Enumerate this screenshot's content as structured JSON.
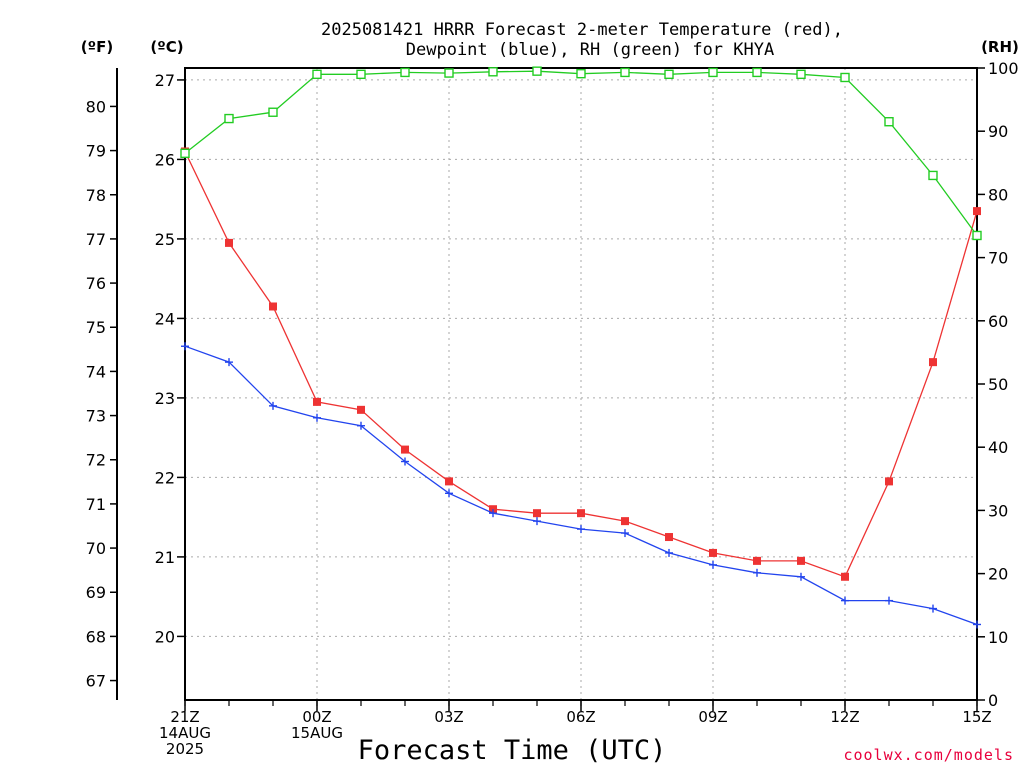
{
  "chart_data": {
    "type": "line",
    "title_line1": "2025081421 HRRR Forecast 2-meter Temperature (red),",
    "title_line2": "Dewpoint (blue), RH (green) for KHYA",
    "axis_unit_f": "(ºF)",
    "axis_unit_c": "(ºC)",
    "axis_unit_rh": "(RH)",
    "xlabel": "Forecast Time (UTC)",
    "credit": "coolwx.com/models",
    "x_hours": [
      0,
      1,
      2,
      3,
      4,
      5,
      6,
      7,
      8,
      9,
      10,
      11,
      12,
      13,
      14,
      15,
      16,
      17,
      18
    ],
    "xlim": [
      0,
      18
    ],
    "x_ticks": [
      {
        "hour": 0,
        "lines": [
          "21Z",
          "14AUG",
          "2025"
        ]
      },
      {
        "hour": 3,
        "lines": [
          "00Z",
          "15AUG"
        ]
      },
      {
        "hour": 6,
        "lines": [
          "03Z"
        ]
      },
      {
        "hour": 9,
        "lines": [
          "06Z"
        ]
      },
      {
        "hour": 12,
        "lines": [
          "09Z"
        ]
      },
      {
        "hour": 15,
        "lines": [
          "12Z"
        ]
      },
      {
        "hour": 18,
        "lines": [
          "15Z"
        ]
      }
    ],
    "ylim_c": [
      19.2,
      27.15
    ],
    "yticks_c": [
      20,
      21,
      22,
      23,
      24,
      25,
      26,
      27
    ],
    "yticks_f": [
      67,
      68,
      69,
      70,
      71,
      72,
      73,
      74,
      75,
      76,
      77,
      78,
      79,
      80
    ],
    "ylim_rh": [
      0,
      100
    ],
    "yticks_rh": [
      0,
      10,
      20,
      30,
      40,
      50,
      60,
      70,
      80,
      90,
      100
    ],
    "grid": true,
    "series": [
      {
        "name": "Temperature",
        "color": "#ee3333",
        "marker": "filled-square",
        "axis": "c",
        "values": [
          26.1,
          24.95,
          24.15,
          22.95,
          22.85,
          22.35,
          21.95,
          21.6,
          21.55,
          21.55,
          21.45,
          21.25,
          21.05,
          20.95,
          20.95,
          20.75,
          21.95,
          23.45,
          25.35
        ]
      },
      {
        "name": "Dewpoint",
        "color": "#2244ee",
        "marker": "plus",
        "axis": "c",
        "values": [
          23.65,
          23.45,
          22.9,
          22.75,
          22.65,
          22.2,
          21.8,
          21.55,
          21.45,
          21.35,
          21.3,
          21.05,
          20.9,
          20.8,
          20.75,
          20.45,
          20.45,
          20.35,
          20.15
        ]
      },
      {
        "name": "RH",
        "color": "#22cc22",
        "marker": "open-square",
        "axis": "rh",
        "values": [
          86.5,
          92,
          93,
          99,
          99,
          99.3,
          99.2,
          99.4,
          99.5,
          99.1,
          99.3,
          99,
          99.3,
          99.3,
          99,
          98.5,
          91.5,
          83,
          73.5
        ]
      }
    ]
  }
}
